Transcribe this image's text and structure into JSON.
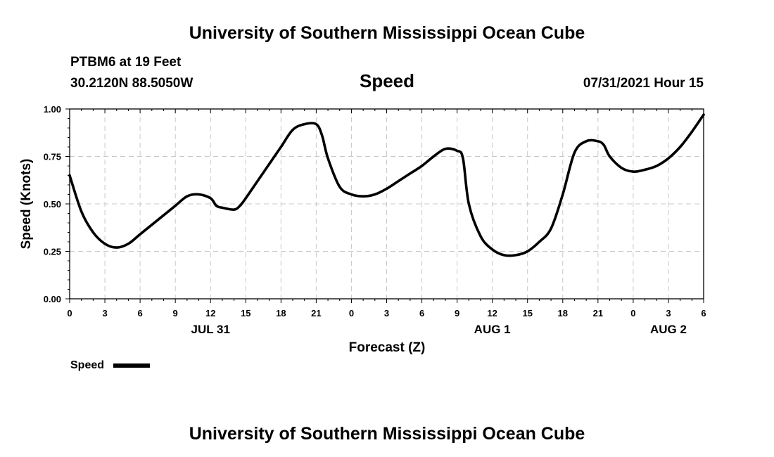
{
  "header": {
    "title": "University of Southern Mississippi Ocean Cube",
    "station": "PTBM6 at 19 Feet",
    "coords": "30.2120N  88.5050W",
    "variable": "Speed",
    "issued": "07/31/2021 Hour 15"
  },
  "footer": {
    "title": "University of Southern Mississippi Ocean Cube"
  },
  "colors": {
    "line": "#000000",
    "grid": "#c8c8c8"
  },
  "chart_data": {
    "type": "line",
    "xlabel": "Forecast (Z)",
    "ylabel": "Speed (Knots)",
    "xlim": [
      0,
      54
    ],
    "ylim": [
      0,
      1
    ],
    "grid": true,
    "y_ticks": [
      "0.00",
      "0.25",
      "0.50",
      "0.75",
      "1.00"
    ],
    "x_ticks": [
      "0",
      "3",
      "6",
      "9",
      "12",
      "15",
      "18",
      "21",
      "0",
      "3",
      "6",
      "9",
      "12",
      "15",
      "18",
      "21",
      "0",
      "3",
      "6"
    ],
    "day_labels": [
      {
        "hour": 12,
        "label": "JUL 31"
      },
      {
        "hour": 36,
        "label": "AUG 1"
      },
      {
        "hour": 51,
        "label": "AUG 2"
      }
    ],
    "legend": {
      "position": "bottom-left",
      "label": "Speed"
    },
    "series": [
      {
        "name": "Speed",
        "x": [
          0,
          1,
          2,
          3,
          4,
          5,
          6,
          7,
          8,
          9,
          10,
          11,
          12,
          12.5,
          13,
          14,
          14.5,
          15,
          16,
          17,
          18,
          19,
          20,
          21,
          21.5,
          22,
          23,
          24,
          25,
          26,
          27,
          28,
          29,
          30,
          31,
          32,
          33,
          33.5,
          34,
          35,
          36,
          37,
          38,
          39,
          40,
          41,
          42,
          43,
          44,
          45,
          45.5,
          46,
          47,
          48,
          49,
          50,
          51,
          52,
          53,
          54
        ],
        "y": [
          0.65,
          0.46,
          0.35,
          0.29,
          0.27,
          0.29,
          0.34,
          0.39,
          0.44,
          0.49,
          0.54,
          0.55,
          0.53,
          0.49,
          0.48,
          0.47,
          0.49,
          0.53,
          0.62,
          0.71,
          0.8,
          0.89,
          0.92,
          0.92,
          0.86,
          0.74,
          0.59,
          0.55,
          0.54,
          0.55,
          0.58,
          0.62,
          0.66,
          0.7,
          0.75,
          0.79,
          0.78,
          0.74,
          0.5,
          0.33,
          0.26,
          0.23,
          0.23,
          0.25,
          0.3,
          0.37,
          0.55,
          0.77,
          0.83,
          0.83,
          0.81,
          0.75,
          0.69,
          0.67,
          0.68,
          0.7,
          0.74,
          0.8,
          0.88,
          0.97
        ]
      }
    ]
  }
}
